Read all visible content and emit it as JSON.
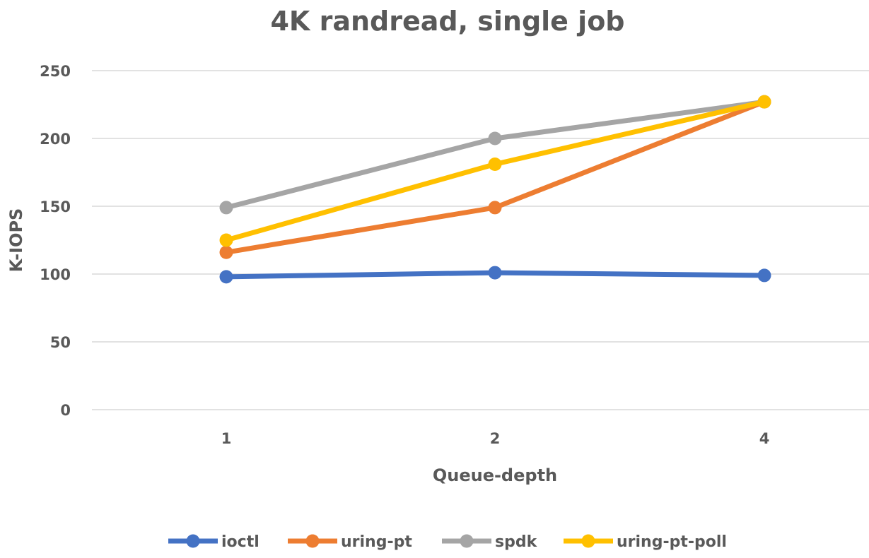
{
  "chart_data": {
    "type": "line",
    "title": "4K randread, single job",
    "xlabel": "Queue-depth",
    "ylabel": "K-IOPS",
    "categories": [
      "1",
      "2",
      "4"
    ],
    "ylim": [
      0,
      250
    ],
    "yticks": [
      0,
      50,
      100,
      150,
      200,
      250
    ],
    "grid": true,
    "legend_position": "bottom",
    "series": [
      {
        "name": "ioctl",
        "values": [
          98,
          101,
          99
        ],
        "color": "#4472c4"
      },
      {
        "name": "uring-pt",
        "values": [
          116,
          149,
          227
        ],
        "color": "#ed7d31"
      },
      {
        "name": "spdk",
        "values": [
          149,
          200,
          227
        ],
        "color": "#a5a5a5"
      },
      {
        "name": "uring-pt-poll",
        "values": [
          125,
          181,
          227
        ],
        "color": "#ffc000"
      }
    ]
  }
}
